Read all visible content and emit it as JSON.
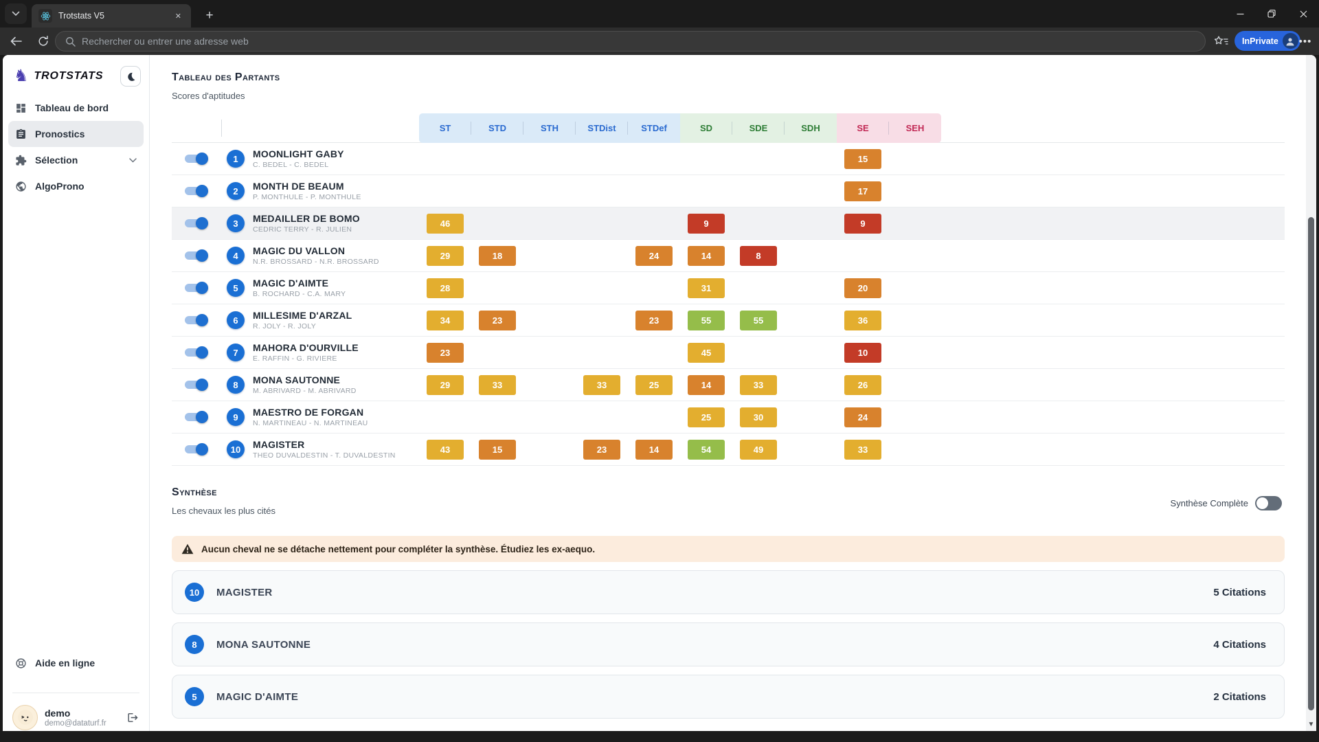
{
  "browser": {
    "tab": {
      "title": "Trotstats V5"
    },
    "address": {
      "placeholder": "Rechercher ou entrer une adresse web"
    },
    "inprivate_label": "InPrivate",
    "icons": {
      "tab-list-chevron": "⌄",
      "tab-favicon": "react-atom",
      "tab-close": "✕",
      "new-tab": "+",
      "back": "←",
      "refresh": "↻",
      "search": "magnifier",
      "favorites-hub": "star-lines",
      "profile": "person",
      "more": "…",
      "minimize": "—",
      "restore": "❐",
      "close-window": "✕",
      "scroll-down": "▾"
    }
  },
  "sidebar": {
    "brand": "TROTSTATS",
    "brand_icon": "horse",
    "dark_mode_icon": "moon",
    "nav": [
      {
        "id": "tableau-de-bord",
        "label": "Tableau de bord",
        "icon": "dashboard-grid",
        "active": false
      },
      {
        "id": "pronostics",
        "label": "Pronostics",
        "icon": "clipboard",
        "active": true
      },
      {
        "id": "selection",
        "label": "Sélection",
        "icon": "puzzle",
        "active": false,
        "chevron": "chevron-down"
      },
      {
        "id": "algoprono",
        "label": "AlgoProno",
        "icon": "globe",
        "active": false
      }
    ],
    "help_label": "Aide en ligne",
    "help_icon": "lifebuoy",
    "user": {
      "name": "demo",
      "email": "demo@dataturf.fr",
      "logout_icon": "logout-arrow"
    }
  },
  "partants": {
    "title": "Tableau des Partants",
    "subtitle": "Scores d'aptitudes",
    "column_groups": [
      {
        "tone": "blue",
        "cols": [
          "ST",
          "STD",
          "STH",
          "STDist",
          "STDef"
        ]
      },
      {
        "tone": "green",
        "cols": [
          "SD",
          "SDE",
          "SDH"
        ]
      },
      {
        "tone": "pink",
        "cols": [
          "SE",
          "SEH"
        ]
      }
    ],
    "columns": [
      "ST",
      "STD",
      "STH",
      "STDist",
      "STDef",
      "SD",
      "SDE",
      "SDH",
      "SE",
      "SEH"
    ],
    "horses": [
      {
        "number": "1",
        "name": "MOONLIGHT GABY",
        "drivers": "C. BEDEL - C. BEDEL",
        "toggle": true,
        "highlighted": false,
        "scores": {
          "SE": {
            "v": "15",
            "tone": "orange"
          }
        }
      },
      {
        "number": "2",
        "name": "MONTH DE BEAUM",
        "drivers": "P. MONTHULE - P. MONTHULE",
        "toggle": true,
        "highlighted": false,
        "scores": {
          "SE": {
            "v": "17",
            "tone": "orange"
          }
        }
      },
      {
        "number": "3",
        "name": "MEDAILLER DE BOMO",
        "drivers": "CEDRIC TERRY - R. JULIEN",
        "toggle": true,
        "highlighted": true,
        "scores": {
          "ST": {
            "v": "46",
            "tone": "yellow"
          },
          "SD": {
            "v": "9",
            "tone": "red"
          },
          "SE": {
            "v": "9",
            "tone": "red"
          }
        }
      },
      {
        "number": "4",
        "name": "MAGIC DU VALLON",
        "drivers": "N.R. BROSSARD - N.R. BROSSARD",
        "toggle": true,
        "highlighted": false,
        "scores": {
          "ST": {
            "v": "29",
            "tone": "yellow"
          },
          "STD": {
            "v": "18",
            "tone": "orange"
          },
          "STDef": {
            "v": "24",
            "tone": "orange"
          },
          "SD": {
            "v": "14",
            "tone": "orange"
          },
          "SDE": {
            "v": "8",
            "tone": "red"
          }
        }
      },
      {
        "number": "5",
        "name": "MAGIC D'AIMTE",
        "drivers": "B. ROCHARD - C.A. MARY",
        "toggle": true,
        "highlighted": false,
        "scores": {
          "ST": {
            "v": "28",
            "tone": "yellow"
          },
          "SD": {
            "v": "31",
            "tone": "yellow"
          },
          "SE": {
            "v": "20",
            "tone": "orange"
          }
        }
      },
      {
        "number": "6",
        "name": "MILLESIME D'ARZAL",
        "drivers": "R. JOLY - R. JOLY",
        "toggle": true,
        "highlighted": false,
        "scores": {
          "ST": {
            "v": "34",
            "tone": "yellow"
          },
          "STD": {
            "v": "23",
            "tone": "orange"
          },
          "STDef": {
            "v": "23",
            "tone": "orange"
          },
          "SD": {
            "v": "55",
            "tone": "green"
          },
          "SDE": {
            "v": "55",
            "tone": "green"
          },
          "SE": {
            "v": "36",
            "tone": "yellow"
          }
        }
      },
      {
        "number": "7",
        "name": "MAHORA D'OURVILLE",
        "drivers": "E. RAFFIN - G. RIVIERE",
        "toggle": true,
        "highlighted": false,
        "scores": {
          "ST": {
            "v": "23",
            "tone": "orange"
          },
          "SD": {
            "v": "45",
            "tone": "yellow"
          },
          "SE": {
            "v": "10",
            "tone": "red"
          }
        }
      },
      {
        "number": "8",
        "name": "MONA SAUTONNE",
        "drivers": "M. ABRIVARD - M. ABRIVARD",
        "toggle": true,
        "highlighted": false,
        "scores": {
          "ST": {
            "v": "29",
            "tone": "yellow"
          },
          "STD": {
            "v": "33",
            "tone": "yellow"
          },
          "STDist": {
            "v": "33",
            "tone": "yellow"
          },
          "STDef": {
            "v": "25",
            "tone": "yellow"
          },
          "SD": {
            "v": "14",
            "tone": "orange"
          },
          "SDE": {
            "v": "33",
            "tone": "yellow"
          },
          "SE": {
            "v": "26",
            "tone": "yellow"
          }
        }
      },
      {
        "number": "9",
        "name": "MAESTRO DE FORGAN",
        "drivers": "N. MARTINEAU - N. MARTINEAU",
        "toggle": true,
        "highlighted": false,
        "scores": {
          "SD": {
            "v": "25",
            "tone": "yellow"
          },
          "SDE": {
            "v": "30",
            "tone": "yellow"
          },
          "SE": {
            "v": "24",
            "tone": "orange"
          }
        }
      },
      {
        "number": "10",
        "name": "MAGISTER",
        "drivers": "THEO DUVALDESTIN - T. DUVALDESTIN",
        "toggle": true,
        "highlighted": false,
        "scores": {
          "ST": {
            "v": "43",
            "tone": "yellow"
          },
          "STD": {
            "v": "15",
            "tone": "orange"
          },
          "STDist": {
            "v": "23",
            "tone": "orange"
          },
          "STDef": {
            "v": "14",
            "tone": "orange"
          },
          "SD": {
            "v": "54",
            "tone": "green"
          },
          "SDE": {
            "v": "49",
            "tone": "yellow"
          },
          "SE": {
            "v": "33",
            "tone": "yellow"
          }
        }
      }
    ]
  },
  "synthese": {
    "title": "Synthèse",
    "subtitle": "Les chevaux les plus cités",
    "toggle_label": "Synthèse Complète",
    "toggle_state": "off",
    "warning": "Aucun cheval ne se détache nettement pour compléter la synthèse. Étudiez les ex-aequo.",
    "warning_icon": "warning-triangle",
    "cards": [
      {
        "number": "10",
        "name": "MAGISTER",
        "citations": "5 Citations"
      },
      {
        "number": "8",
        "name": "MONA SAUTONNE",
        "citations": "4 Citations"
      },
      {
        "number": "5",
        "name": "MAGIC D'AIMTE",
        "citations": "2 Citations"
      }
    ]
  },
  "colors": {
    "tones": {
      "yellow": "#e3ae2f",
      "orange": "#d8822d",
      "red": "#c33b27",
      "green": "#95bd4a"
    },
    "groups": {
      "blue": {
        "bg": "#daeaf8",
        "text": "#2b6bd0"
      },
      "green": {
        "bg": "#e3f1e3",
        "text": "#2e7d36"
      },
      "pink": {
        "bg": "#f8dde6",
        "text": "#c22a56"
      }
    },
    "accent_blue": "#1a6fd4",
    "inprivate_blue": "#2864dc"
  }
}
